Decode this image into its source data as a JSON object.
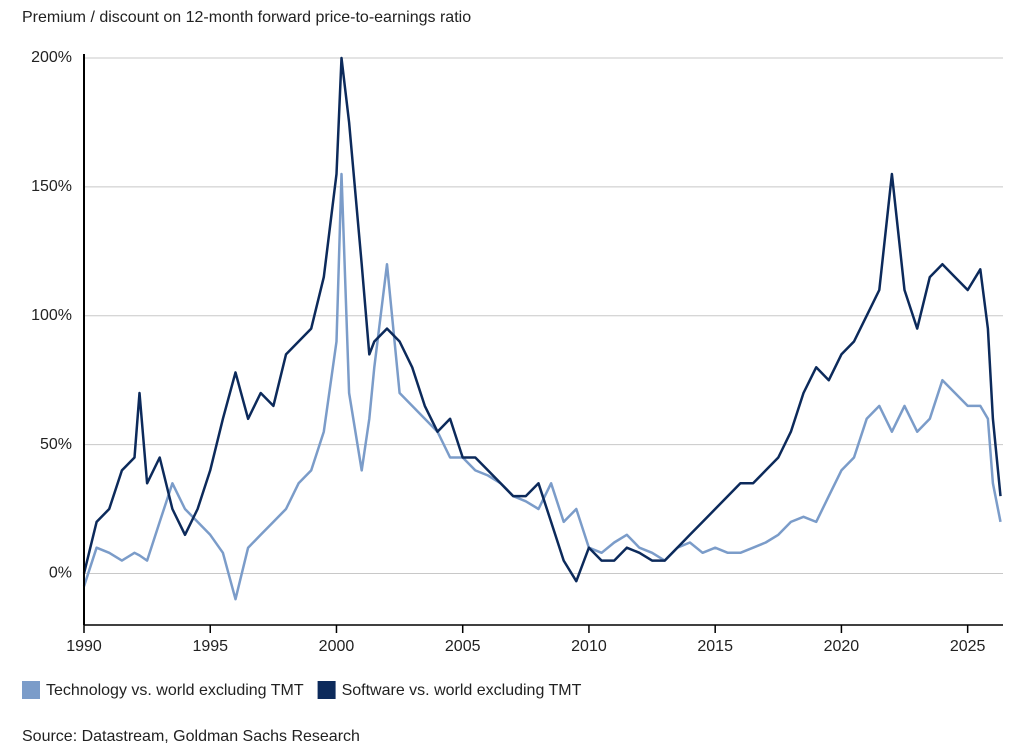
{
  "chart_data": {
    "type": "line",
    "title": "Premium / discount on 12-month forward price-to-earnings ratio",
    "source": "Source: Datastream, Goldman Sachs Research",
    "x": [
      1990,
      1990.5,
      1991,
      1991.5,
      1992,
      1992.2,
      1992.5,
      1993,
      1993.5,
      1994,
      1994.5,
      1995,
      1995.5,
      1996,
      1996.5,
      1997,
      1997.5,
      1998,
      1998.5,
      1999,
      1999.5,
      2000,
      2000.2,
      2000.5,
      2001,
      2001.3,
      2001.5,
      2002,
      2002.5,
      2003,
      2003.5,
      2004,
      2004.5,
      2005,
      2005.5,
      2006,
      2006.5,
      2007,
      2007.5,
      2008,
      2008.5,
      2009,
      2009.5,
      2010,
      2010.5,
      2011,
      2011.5,
      2012,
      2012.5,
      2013,
      2013.5,
      2014,
      2014.5,
      2015,
      2015.5,
      2016,
      2016.5,
      2017,
      2017.5,
      2018,
      2018.5,
      2019,
      2019.5,
      2020,
      2020.5,
      2021,
      2021.5,
      2022,
      2022.5,
      2023,
      2023.5,
      2024,
      2024.5,
      2025,
      2025.5,
      2025.8,
      2026,
      2026.3
    ],
    "series": [
      {
        "name": "Technology vs. world excluding TMT",
        "color": "#7b9cc9",
        "values": [
          -5,
          10,
          8,
          5,
          8,
          7,
          5,
          20,
          35,
          25,
          20,
          15,
          8,
          -10,
          10,
          15,
          20,
          25,
          35,
          40,
          55,
          90,
          155,
          70,
          40,
          60,
          80,
          120,
          70,
          65,
          60,
          55,
          45,
          45,
          40,
          38,
          35,
          30,
          28,
          25,
          35,
          20,
          25,
          10,
          8,
          12,
          15,
          10,
          8,
          5,
          10,
          12,
          8,
          10,
          8,
          8,
          10,
          12,
          15,
          20,
          22,
          20,
          30,
          40,
          45,
          60,
          65,
          55,
          65,
          55,
          60,
          75,
          70,
          65,
          65,
          60,
          35,
          20
        ]
      },
      {
        "name": "Software vs. world excluding TMT",
        "color": "#0c2a5b",
        "values": [
          0,
          20,
          25,
          40,
          45,
          70,
          35,
          45,
          25,
          15,
          25,
          40,
          60,
          78,
          60,
          70,
          65,
          85,
          90,
          95,
          115,
          155,
          200,
          175,
          120,
          85,
          90,
          95,
          90,
          80,
          65,
          55,
          60,
          45,
          45,
          40,
          35,
          30,
          30,
          35,
          20,
          5,
          -3,
          10,
          5,
          5,
          10,
          8,
          5,
          5,
          10,
          15,
          20,
          25,
          30,
          35,
          35,
          40,
          45,
          55,
          70,
          80,
          75,
          85,
          90,
          100,
          110,
          155,
          110,
          95,
          115,
          120,
          115,
          110,
          118,
          95,
          60,
          30
        ]
      }
    ],
    "xlim": [
      1990,
      2026.4
    ],
    "xticks": [
      1990,
      1995,
      2000,
      2005,
      2010,
      2015,
      2020,
      2025
    ],
    "ylim": [
      -20,
      200
    ],
    "yticks": [
      {
        "value": 0,
        "label": "0%"
      },
      {
        "value": 50,
        "label": "50%"
      },
      {
        "value": 100,
        "label": "100%"
      },
      {
        "value": 150,
        "label": "150%"
      },
      {
        "value": 200,
        "label": "200%"
      }
    ],
    "grid": true
  }
}
